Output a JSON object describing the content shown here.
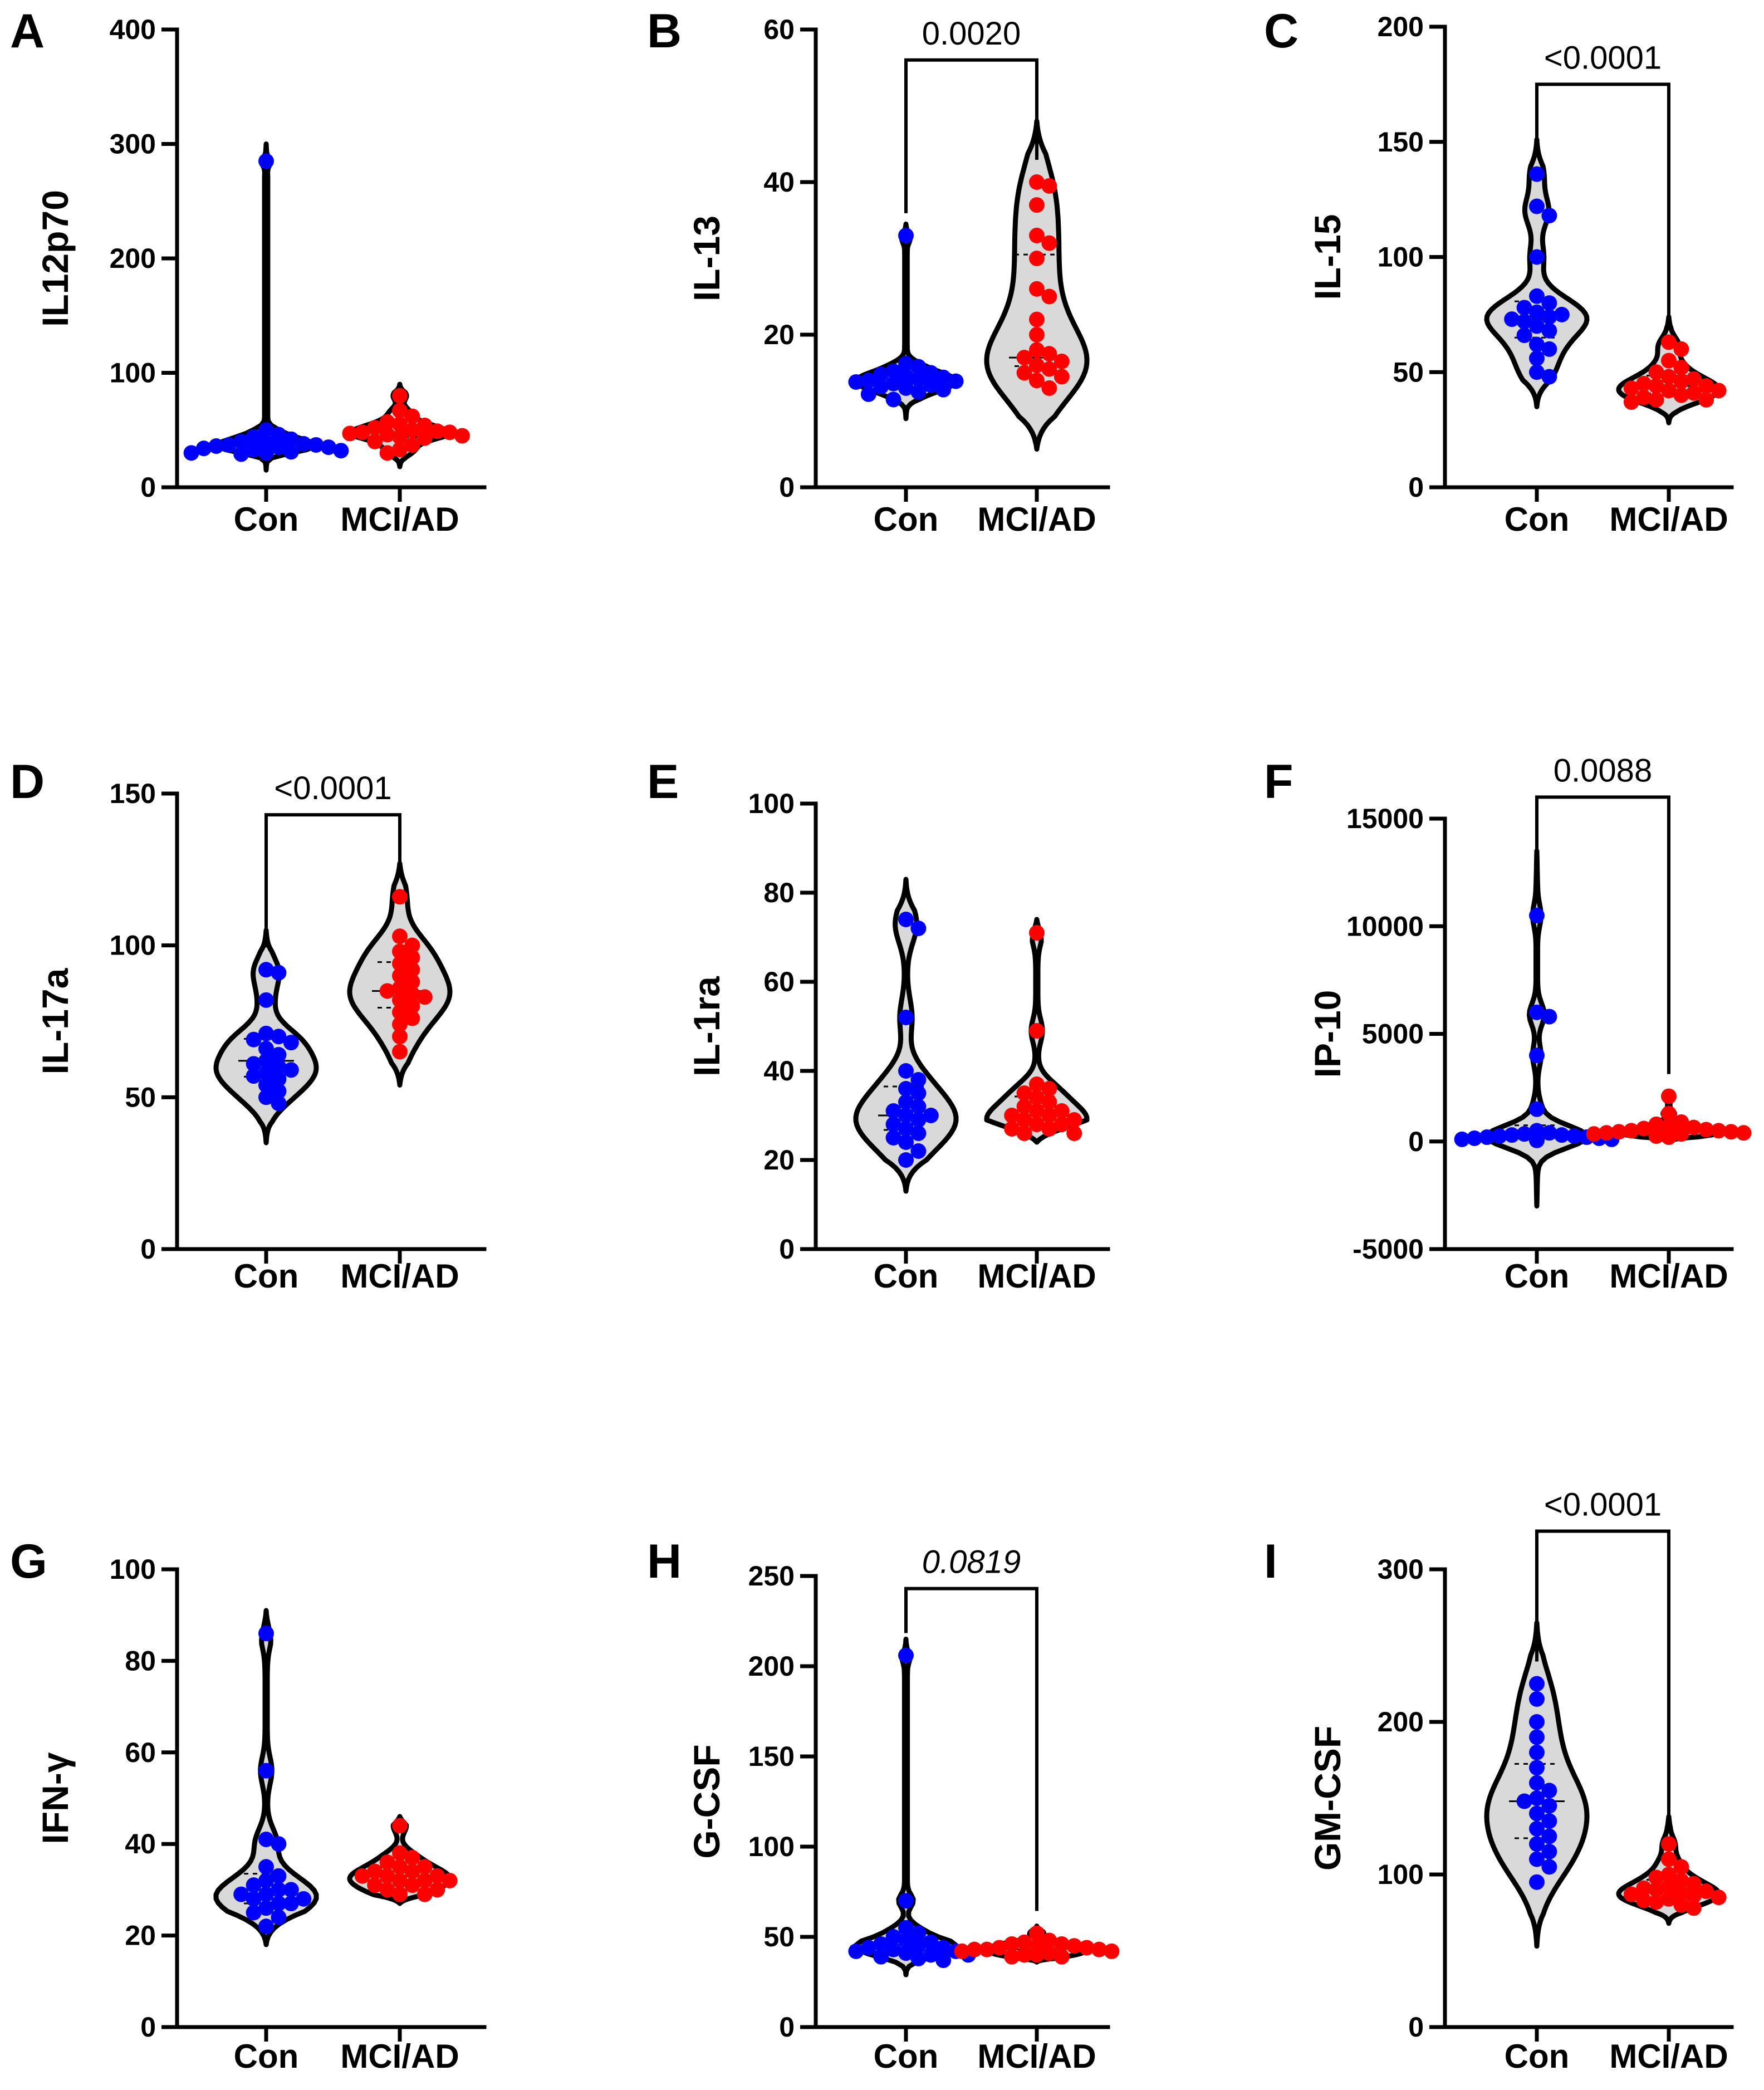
{
  "figure": {
    "group_colors": {
      "Con": "#0000ff",
      "MCI/AD": "#ff0000"
    }
  },
  "chart_data": [
    {
      "panel": "A",
      "type": "violin",
      "ylabel": "IL12p70",
      "categories": [
        "Con",
        "MCI/AD"
      ],
      "ylim": [
        0,
        400
      ],
      "yticks": [
        0,
        100,
        200,
        300,
        400
      ],
      "ytick_labels": [
        "0",
        "100",
        "200",
        "300",
        "400"
      ],
      "series": [
        {
          "name": "Con",
          "color": "#0000ff",
          "violin_range": [
            15,
            300
          ],
          "median": 37,
          "values": [
            285,
            50,
            46,
            44,
            42,
            40,
            39,
            38,
            37,
            37,
            36,
            35,
            35,
            34,
            33,
            32,
            31,
            30,
            30,
            29
          ]
        },
        {
          "name": "MCI/AD",
          "color": "#ff0000",
          "violin_range": [
            18,
            90
          ],
          "median": 48,
          "values": [
            80,
            67,
            62,
            57,
            55,
            54,
            52,
            50,
            49,
            48,
            48,
            47,
            46,
            45,
            44,
            43,
            40,
            37,
            33,
            30
          ]
        }
      ],
      "comparison": null
    },
    {
      "panel": "B",
      "type": "violin",
      "ylabel": "IL-13",
      "categories": [
        "Con",
        "MCI/AD"
      ],
      "ylim": [
        0,
        60
      ],
      "yticks": [
        0,
        20,
        40,
        60
      ],
      "ytick_labels": [
        "0",
        "20",
        "40",
        "60"
      ],
      "series": [
        {
          "name": "Con",
          "color": "#0000ff",
          "violin_range": [
            9,
            34.5
          ],
          "median": 13.8,
          "values": [
            33,
            16.2,
            15.8,
            15.2,
            15,
            14.8,
            14.6,
            14.4,
            14.2,
            14,
            13.9,
            13.8,
            13.6,
            13.4,
            13.2,
            13,
            12.8,
            12.5,
            12.2,
            11.5
          ]
        },
        {
          "name": "MCI/AD",
          "color": "#ff0000",
          "violin_range": [
            5,
            48
          ],
          "median": 17,
          "values": [
            40,
            39.5,
            37,
            33,
            32,
            30,
            26,
            25,
            22,
            20,
            18,
            17.5,
            17,
            16.5,
            16,
            15.5,
            15,
            14.5,
            14,
            13
          ]
        }
      ],
      "comparison": {
        "groups": [
          "Con",
          "MCI/AD"
        ],
        "label": "0.0020",
        "italic": false,
        "y": 56
      }
    },
    {
      "panel": "C",
      "type": "violin",
      "ylabel": "IL-15",
      "categories": [
        "Con",
        "MCI/AD"
      ],
      "ylim": [
        0,
        200
      ],
      "yticks": [
        0,
        50,
        100,
        150,
        200
      ],
      "ytick_labels": [
        "0",
        "50",
        "100",
        "150",
        "200"
      ],
      "series": [
        {
          "name": "Con",
          "color": "#0000ff",
          "violin_range": [
            35,
            151
          ],
          "median": 73,
          "values": [
            136,
            122,
            118,
            100,
            83,
            80,
            78,
            76,
            75,
            74,
            73,
            72,
            70,
            68,
            66,
            62,
            60,
            56,
            50,
            48
          ]
        },
        {
          "name": "MCI/AD",
          "color": "#ff0000",
          "violin_range": [
            28,
            74
          ],
          "median": 44,
          "values": [
            63,
            60,
            55,
            52,
            50,
            48,
            47,
            46,
            45,
            44,
            44,
            43,
            42,
            42,
            41,
            40,
            39,
            38,
            38,
            37
          ]
        }
      ],
      "comparison": {
        "groups": [
          "Con",
          "MCI/AD"
        ],
        "label": "<0.0001",
        "italic": false,
        "y": 175
      }
    },
    {
      "panel": "D",
      "type": "violin",
      "ylabel": "IL-17a",
      "categories": [
        "Con",
        "MCI/AD"
      ],
      "ylim": [
        0,
        150
      ],
      "yticks": [
        0,
        50,
        100,
        150
      ],
      "ytick_labels": [
        "0",
        "50",
        "100",
        "150"
      ],
      "series": [
        {
          "name": "Con",
          "color": "#0000ff",
          "violin_range": [
            35,
            105
          ],
          "median": 62,
          "values": [
            92,
            91,
            82,
            71,
            70,
            69,
            68,
            66,
            64,
            62,
            61,
            60,
            59,
            58,
            57,
            56,
            54,
            52,
            50,
            48
          ]
        },
        {
          "name": "MCI/AD",
          "color": "#ff0000",
          "violin_range": [
            54,
            127
          ],
          "median": 85,
          "values": [
            116,
            103,
            100,
            98,
            96,
            94,
            92,
            90,
            88,
            86,
            85,
            84,
            83,
            82,
            80,
            78,
            76,
            74,
            70,
            65
          ]
        }
      ],
      "comparison": {
        "groups": [
          "Con",
          "MCI/AD"
        ],
        "label": "<0.0001",
        "italic": false,
        "y": 143
      }
    },
    {
      "panel": "E",
      "type": "violin",
      "ylabel": "IL-1ra",
      "categories": [
        "Con",
        "MCI/AD"
      ],
      "ylim": [
        0,
        100
      ],
      "yticks": [
        0,
        20,
        40,
        60,
        80,
        100
      ],
      "ytick_labels": [
        "0",
        "20",
        "40",
        "60",
        "80",
        "100"
      ],
      "series": [
        {
          "name": "Con",
          "color": "#0000ff",
          "violin_range": [
            13,
            83
          ],
          "median": 30,
          "values": [
            74,
            72,
            52,
            40,
            38,
            36,
            35,
            33,
            32,
            31,
            30,
            30,
            29,
            28,
            27,
            26,
            25,
            24,
            22,
            20
          ]
        },
        {
          "name": "MCI/AD",
          "color": "#ff0000",
          "violin_range": [
            24,
            74
          ],
          "median": 30,
          "values": [
            71,
            49,
            37,
            36,
            35,
            34,
            33,
            32,
            31,
            31,
            30,
            30,
            29,
            29,
            28,
            28,
            27,
            27,
            26,
            26
          ]
        }
      ],
      "comparison": null
    },
    {
      "panel": "F",
      "type": "violin",
      "ylabel": "IP-10",
      "categories": [
        "Con",
        "MCI/AD"
      ],
      "ylim": [
        -5000,
        15000
      ],
      "yticks": [
        -5000,
        0,
        5000,
        10000,
        15000
      ],
      "ytick_labels": [
        "-5000",
        "0",
        "5000",
        "10000",
        "15000"
      ],
      "series": [
        {
          "name": "Con",
          "color": "#0000ff",
          "violin_range": [
            -3000,
            13500
          ],
          "median": 300,
          "values": [
            10500,
            6000,
            5800,
            4000,
            1500,
            500,
            400,
            350,
            300,
            300,
            250,
            250,
            200,
            200,
            150,
            150,
            100,
            100,
            80,
            50
          ]
        },
        {
          "name": "MCI/AD",
          "color": "#ff0000",
          "violin_range": [
            0,
            2100
          ],
          "median": 500,
          "values": [
            2100,
            1300,
            900,
            800,
            700,
            650,
            600,
            550,
            500,
            500,
            450,
            450,
            400,
            400,
            350,
            350,
            300,
            300,
            250,
            200
          ]
        }
      ],
      "comparison": {
        "groups": [
          "Con",
          "MCI/AD"
        ],
        "label": "0.0088",
        "italic": false,
        "y": 16000
      }
    },
    {
      "panel": "G",
      "type": "violin",
      "ylabel": "IFN-γ",
      "categories": [
        "Con",
        "MCI/AD"
      ],
      "ylim": [
        0,
        100
      ],
      "yticks": [
        0,
        20,
        40,
        60,
        80,
        100
      ],
      "ytick_labels": [
        "0",
        "20",
        "40",
        "60",
        "80",
        "100"
      ],
      "series": [
        {
          "name": "Con",
          "color": "#0000ff",
          "violin_range": [
            18,
            91
          ],
          "median": 30,
          "values": [
            86,
            56,
            41,
            40,
            35,
            33,
            32,
            31,
            30,
            30,
            29,
            29,
            28,
            28,
            27,
            27,
            26,
            25,
            24,
            22
          ]
        },
        {
          "name": "MCI/AD",
          "color": "#ff0000",
          "violin_range": [
            27,
            46
          ],
          "median": 33,
          "values": [
            44,
            38,
            37,
            36,
            35,
            35,
            34,
            34,
            33,
            33,
            33,
            32,
            32,
            32,
            31,
            31,
            30,
            30,
            29,
            29
          ]
        }
      ],
      "comparison": null
    },
    {
      "panel": "H",
      "type": "violin",
      "ylabel": "G-CSF",
      "categories": [
        "Con",
        "MCI/AD"
      ],
      "ylim": [
        0,
        250
      ],
      "yticks": [
        0,
        50,
        100,
        150,
        200,
        250
      ],
      "ytick_labels": [
        "0",
        "50",
        "100",
        "150",
        "200",
        "250"
      ],
      "series": [
        {
          "name": "Con",
          "color": "#0000ff",
          "violin_range": [
            29,
            215
          ],
          "median": 44,
          "values": [
            206,
            70,
            55,
            52,
            50,
            48,
            47,
            46,
            45,
            44,
            44,
            43,
            42,
            42,
            41,
            40,
            40,
            39,
            38,
            37
          ]
        },
        {
          "name": "MCI/AD",
          "color": "#ff0000",
          "violin_range": [
            36,
            56
          ],
          "median": 43,
          "values": [
            52,
            48,
            47,
            46,
            46,
            45,
            45,
            44,
            44,
            43,
            43,
            43,
            42,
            42,
            41,
            41,
            40,
            40,
            39,
            39
          ]
        }
      ],
      "comparison": {
        "groups": [
          "Con",
          "MCI/AD"
        ],
        "label": "0.0819",
        "italic": true,
        "y": 243
      }
    },
    {
      "panel": "I",
      "type": "violin",
      "ylabel": "GM-CSF",
      "categories": [
        "Con",
        "MCI/AD"
      ],
      "ylim": [
        0,
        300
      ],
      "yticks": [
        0,
        100,
        200,
        300
      ],
      "ytick_labels": [
        "0",
        "100",
        "200",
        "300"
      ],
      "series": [
        {
          "name": "Con",
          "color": "#0000ff",
          "violin_range": [
            53,
            265
          ],
          "median": 148,
          "values": [
            225,
            215,
            200,
            190,
            180,
            170,
            160,
            155,
            150,
            148,
            145,
            140,
            135,
            130,
            125,
            120,
            115,
            110,
            105,
            95
          ]
        },
        {
          "name": "MCI/AD",
          "color": "#ff0000",
          "violin_range": [
            68,
            138
          ],
          "median": 90,
          "values": [
            120,
            110,
            105,
            100,
            98,
            96,
            94,
            92,
            91,
            90,
            89,
            88,
            87,
            86,
            85,
            84,
            83,
            82,
            80,
            78
          ]
        }
      ],
      "comparison": {
        "groups": [
          "Con",
          "MCI/AD"
        ],
        "label": "<0.0001",
        "italic": false,
        "y": 325
      }
    }
  ]
}
